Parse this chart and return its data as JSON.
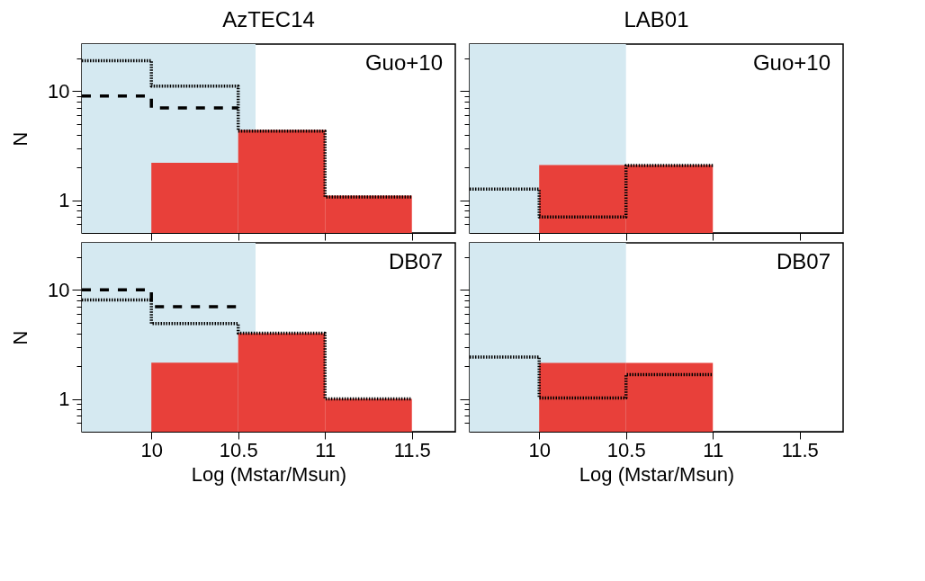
{
  "chart_data": [
    {
      "type": "histogram",
      "title": "AzTEC14",
      "ylabel": "N",
      "log": true,
      "tick_labels": "y",
      "annotations": [
        "Guo+10"
      ],
      "xlim": [
        9.6,
        11.75
      ],
      "xticks": [
        10,
        10.5,
        11,
        11.5
      ],
      "ylim": [
        0.5,
        27
      ],
      "yticks": [
        {
          "value": 0.6,
          "label": null
        },
        {
          "value": 0.7,
          "label": null
        },
        {
          "value": 0.8,
          "label": null
        },
        {
          "value": 0.9,
          "label": null
        },
        1,
        {
          "value": 2,
          "label": null
        },
        {
          "value": 3,
          "label": null
        },
        {
          "value": 4,
          "label": null
        },
        {
          "value": 5,
          "label": null
        },
        {
          "value": 6,
          "label": null
        },
        {
          "value": 7,
          "label": null
        },
        {
          "value": 8,
          "label": null
        },
        {
          "value": 9,
          "label": null
        },
        10,
        {
          "value": 20,
          "label": null
        }
      ],
      "bands": [
        {
          "axis": "x",
          "from": 9.6,
          "to": 10.6,
          "color": "#d5e9f1"
        }
      ],
      "series": [
        {
          "color": "#e8403a",
          "bins": [
            10,
            10.5,
            11,
            11.5
          ],
          "values": [
            2.2,
            4.4,
            1.1
          ]
        },
        {
          "type": "step",
          "line_style": "dotted",
          "color": "#000000",
          "x": [
            9.6,
            10,
            10.5,
            11,
            11.5
          ],
          "values": [
            19,
            11.1,
            4.3,
            1.07,
            1.07
          ]
        },
        {
          "type": "step",
          "line_style": "dashed",
          "color": "#000000",
          "x": [
            9.6,
            10,
            10.5
          ],
          "values": [
            9,
            7,
            7
          ]
        }
      ]
    },
    {
      "type": "histogram",
      "title": "LAB01",
      "log": true,
      "tick_labels": false,
      "annotations": [
        "Guo+10"
      ],
      "xlim": [
        9.6,
        11.75
      ],
      "xticks": [
        10,
        10.5,
        11,
        11.5
      ],
      "ylim": [
        0.5,
        27
      ],
      "yticks": [
        {
          "value": 0.6,
          "label": null
        },
        {
          "value": 0.7,
          "label": null
        },
        {
          "value": 0.8,
          "label": null
        },
        {
          "value": 0.9,
          "label": null
        },
        1,
        {
          "value": 2,
          "label": null
        },
        {
          "value": 3,
          "label": null
        },
        {
          "value": 4,
          "label": null
        },
        {
          "value": 5,
          "label": null
        },
        {
          "value": 6,
          "label": null
        },
        {
          "value": 7,
          "label": null
        },
        {
          "value": 8,
          "label": null
        },
        {
          "value": 9,
          "label": null
        },
        10,
        {
          "value": 20,
          "label": null
        }
      ],
      "bands": [
        {
          "axis": "x",
          "from": 9.6,
          "to": 10.5,
          "color": "#d5e9f1"
        }
      ],
      "series": [
        {
          "color": "#e8403a",
          "bins": [
            10,
            10.5,
            11
          ],
          "values": [
            2.1,
            2.1
          ]
        },
        {
          "type": "step",
          "line_style": "dotted",
          "color": "#000000",
          "x": [
            9.6,
            10,
            10.5,
            11
          ],
          "values": [
            1.26,
            0.7,
            2.08,
            2.08
          ]
        }
      ]
    },
    {
      "type": "histogram",
      "xlabel": "Log (Mstar/Msun)",
      "ylabel": "N",
      "log": true,
      "annotations": [
        "DB07"
      ],
      "xlim": [
        9.6,
        11.75
      ],
      "xticks": [
        10,
        10.5,
        11,
        11.5
      ],
      "ylim": [
        0.5,
        27
      ],
      "yticks": [
        {
          "value": 0.6,
          "label": null
        },
        {
          "value": 0.7,
          "label": null
        },
        {
          "value": 0.8,
          "label": null
        },
        {
          "value": 0.9,
          "label": null
        },
        1,
        {
          "value": 2,
          "label": null
        },
        {
          "value": 3,
          "label": null
        },
        {
          "value": 4,
          "label": null
        },
        {
          "value": 5,
          "label": null
        },
        {
          "value": 6,
          "label": null
        },
        {
          "value": 7,
          "label": null
        },
        {
          "value": 8,
          "label": null
        },
        {
          "value": 9,
          "label": null
        },
        10,
        {
          "value": 20,
          "label": null
        }
      ],
      "bands": [
        {
          "axis": "x",
          "from": 9.6,
          "to": 10.6,
          "color": "#d5e9f1"
        }
      ],
      "series": [
        {
          "color": "#e8403a",
          "bins": [
            10,
            10.5,
            11,
            11.5
          ],
          "values": [
            2.15,
            4.0,
            1.0
          ]
        },
        {
          "type": "step",
          "line_style": "dotted",
          "color": "#000000",
          "x": [
            9.6,
            10,
            10.5,
            11,
            11.5
          ],
          "values": [
            8.1,
            4.9,
            4.0,
            1.0,
            1.0
          ]
        },
        {
          "type": "step",
          "line_style": "dashed",
          "color": "#000000",
          "x": [
            9.6,
            10,
            10.5
          ],
          "values": [
            10,
            7,
            7
          ]
        }
      ]
    },
    {
      "type": "histogram",
      "xlabel": "Log (Mstar/Msun)",
      "log": true,
      "tick_labels": "x",
      "annotations": [
        "DB07"
      ],
      "xlim": [
        9.6,
        11.75
      ],
      "xticks": [
        10,
        10.5,
        11,
        11.5
      ],
      "ylim": [
        0.5,
        27
      ],
      "yticks": [
        {
          "value": 0.6,
          "label": null
        },
        {
          "value": 0.7,
          "label": null
        },
        {
          "value": 0.8,
          "label": null
        },
        {
          "value": 0.9,
          "label": null
        },
        1,
        {
          "value": 2,
          "label": null
        },
        {
          "value": 3,
          "label": null
        },
        {
          "value": 4,
          "label": null
        },
        {
          "value": 5,
          "label": null
        },
        {
          "value": 6,
          "label": null
        },
        {
          "value": 7,
          "label": null
        },
        {
          "value": 8,
          "label": null
        },
        {
          "value": 9,
          "label": null
        },
        10,
        {
          "value": 20,
          "label": null
        }
      ],
      "bands": [
        {
          "axis": "x",
          "from": 9.6,
          "to": 10.5,
          "color": "#d5e9f1"
        }
      ],
      "series": [
        {
          "color": "#e8403a",
          "bins": [
            10,
            10.5,
            11
          ],
          "values": [
            2.14,
            2.14
          ]
        },
        {
          "type": "step",
          "line_style": "dotted",
          "color": "#000000",
          "x": [
            9.6,
            10,
            10.5,
            11
          ],
          "values": [
            2.42,
            1.02,
            1.67,
            1.67
          ]
        }
      ]
    }
  ]
}
